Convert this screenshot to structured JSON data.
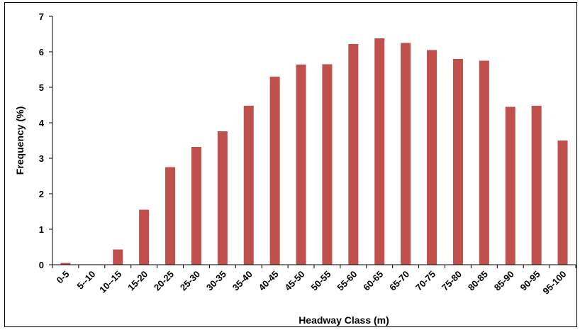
{
  "chart_data": {
    "type": "bar",
    "title": "",
    "xlabel": "Headway Class (m)",
    "ylabel": "Frequency (%)",
    "ylim": [
      0,
      7
    ],
    "yticks": [
      "0",
      "1",
      "2",
      "3",
      "4",
      "5",
      "6",
      "7"
    ],
    "grid": false,
    "legend": "none",
    "bar_color": "#c0504d",
    "categories": [
      "0-5",
      "5--10",
      "10--15",
      "15-20",
      "20-25",
      "25-30",
      "30-35",
      "35-40",
      "40-45",
      "45-50",
      "50-55",
      "55-60",
      "60-65",
      "65-70",
      "70-75",
      "75-80",
      "80-85",
      "85-90",
      "90-95",
      "95-100"
    ],
    "values": [
      0.05,
      0,
      0.43,
      1.55,
      2.75,
      3.32,
      3.76,
      4.48,
      5.3,
      5.64,
      5.65,
      6.22,
      6.38,
      6.25,
      6.05,
      5.8,
      5.75,
      4.45,
      4.48,
      3.5
    ]
  }
}
